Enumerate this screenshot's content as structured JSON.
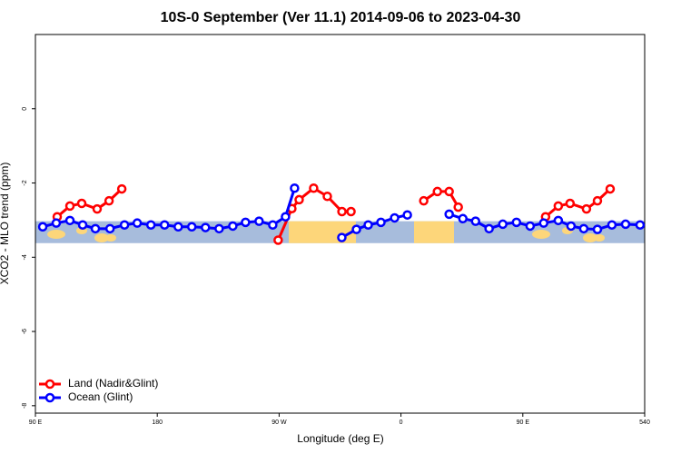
{
  "chart_data": {
    "type": "line",
    "title": "10S-0 September (Ver 11.1)   2014-09-06 to 2023-04-30",
    "x_label": "Longitude (deg E)",
    "y_label": "XCO2 - MLO trend (ppm)",
    "xlim": [
      90,
      540
    ],
    "xticks": [
      {
        "value": 90,
        "label": "90 E"
      },
      180,
      {
        "value": 270,
        "label": "90 W"
      },
      {
        "value": 360,
        "label": "0"
      },
      {
        "value": 450,
        "label": "90 E"
      },
      540
    ],
    "ylim": [
      -8.2,
      2.0
    ],
    "yticks": [
      0,
      -2,
      -4,
      -6,
      -8
    ],
    "legend": "bottomleft",
    "series": [
      {
        "name": "Land (Nadir&Glint)",
        "color": "#ff0000",
        "x": [
          106.1,
          115.5,
          124.2,
          135.6,
          144.4,
          153.8,
          null,
          269.3,
          279.4,
          284.8,
          295.5,
          305.6,
          316.4,
          323.1,
          null,
          376.8,
          386.9,
          395.6,
          402.3,
          null,
          466.8,
          476.2,
          484.9,
          497.0,
          505.1,
          514.5
        ],
        "values": [
          -2.91,
          -2.62,
          -2.55,
          -2.7,
          -2.48,
          -2.16,
          null,
          -3.54,
          -2.69,
          -2.45,
          -2.14,
          -2.36,
          -2.77,
          -2.77,
          null,
          -2.48,
          -2.23,
          -2.23,
          -2.65,
          null,
          -2.91,
          -2.62,
          -2.55,
          -2.7,
          -2.48,
          -2.16
        ]
      },
      {
        "name": "Ocean (Glint)",
        "color": "#0000ff",
        "x": [
          95.4,
          105.4,
          115.5,
          124.9,
          134.3,
          145.1,
          155.8,
          165.2,
          175.3,
          185.4,
          195.5,
          205.5,
          215.6,
          225.7,
          235.8,
          245.2,
          255.2,
          265.3,
          274.7,
          281.4,
          null,
          316.3,
          327.1,
          335.8,
          345.2,
          355.3,
          364.7,
          null,
          395.6,
          405.7,
          415.1,
          425.1,
          435.2,
          445.3,
          455.4,
          465.4,
          476.2,
          485.6,
          495.0,
          505.1,
          515.8,
          525.9,
          536.6
        ],
        "values": [
          -3.18,
          -3.08,
          -3.01,
          -3.13,
          -3.23,
          -3.23,
          -3.13,
          -3.08,
          -3.13,
          -3.13,
          -3.18,
          -3.18,
          -3.2,
          -3.23,
          -3.16,
          -3.06,
          -3.03,
          -3.13,
          -2.91,
          -2.14,
          null,
          -3.47,
          -3.25,
          -3.13,
          -3.06,
          -2.94,
          -2.86,
          null,
          -2.84,
          -2.96,
          -3.03,
          -3.23,
          -3.11,
          -3.06,
          -3.16,
          -3.08,
          -3.01,
          -3.16,
          -3.23,
          -3.25,
          -3.13,
          -3.11,
          -3.13
        ]
      }
    ]
  }
}
